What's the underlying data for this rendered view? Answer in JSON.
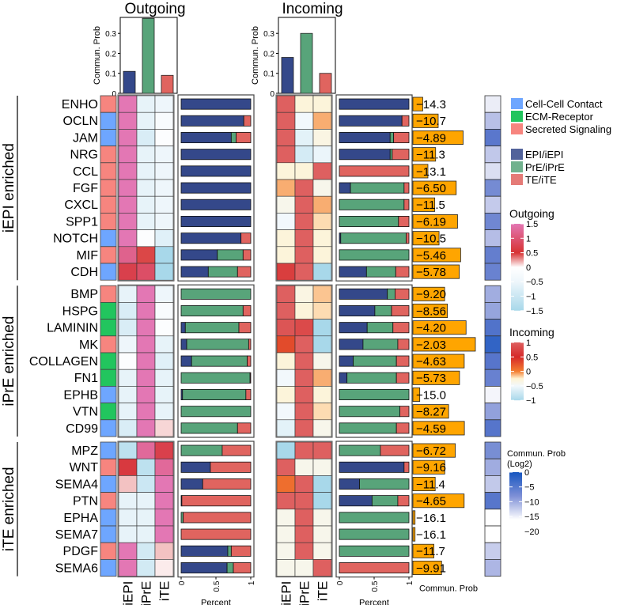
{
  "chart_data": {
    "type": "heatmap",
    "titles": {
      "outgoing": "Outgoing",
      "incoming": "Incoming"
    },
    "top_bar_ylabel": "Commun. Prob",
    "top_bar_yticks": [
      "0",
      "0.1",
      "0.2",
      "0.3"
    ],
    "top_bar_ylim": [
      0,
      0.38
    ],
    "outgoing_totals": [
      0.11,
      0.375,
      0.09
    ],
    "incoming_totals": [
      0.18,
      0.3,
      0.1
    ],
    "cell_groups": [
      "iEPI",
      "iPrE",
      "iTE"
    ],
    "group_colors": {
      "EPI": "#34488a",
      "PrE": "#58a47a",
      "TE": "#e0645f"
    },
    "categories": [
      {
        "name": "Cell-Cell Contact",
        "color": "#6ea6ff"
      },
      {
        "name": "ECM-Receptor",
        "color": "#22c55e"
      },
      {
        "name": "Secreted Signaling",
        "color": "#f7857f"
      }
    ],
    "lineage_legend": [
      "EPI/iEPI",
      "PrE/iPrE",
      "TE/iTE"
    ],
    "sections": [
      {
        "label": "iEPI enriched",
        "rows": [
          0,
          10
        ]
      },
      {
        "label": "iPrE enriched",
        "rows": [
          11,
          19
        ]
      },
      {
        "label": "iTE enriched",
        "rows": [
          20,
          27
        ]
      }
    ],
    "pathways": [
      {
        "name": "ENHO",
        "cat": 2,
        "out": [
          1.5,
          -0.6,
          -0.5
        ],
        "in": [
          1.0,
          -0.3,
          -0.3
        ],
        "out_pct": [
          1,
          0,
          0
        ],
        "in_pct": [
          1,
          0,
          0
        ],
        "prob": "−14.3",
        "log2": -14.3
      },
      {
        "name": "OCLN",
        "cat": 0,
        "out": [
          1.5,
          -0.6,
          -0.2
        ],
        "in": [
          1.0,
          -0.5,
          -0.1
        ],
        "out_pct": [
          0.9,
          0,
          0.1
        ],
        "in_pct": [
          0.9,
          0,
          0.1
        ],
        "prob": "−10.7",
        "log2": -10.7
      },
      {
        "name": "JAM",
        "cat": 0,
        "out": [
          1.5,
          -0.8,
          -0.1
        ],
        "in": [
          1.0,
          -0.6,
          -0.35
        ],
        "out_pct": [
          0.72,
          0.07,
          0.21
        ],
        "in_pct": [
          0.73,
          0.05,
          0.22
        ],
        "prob": "−4.89",
        "log2": -4.89
      },
      {
        "name": "NRG",
        "cat": 2,
        "out": [
          1.5,
          -0.6,
          -0.5
        ],
        "in": [
          1.0,
          -0.7,
          -0.55
        ],
        "out_pct": [
          1,
          0,
          0
        ],
        "in_pct": [
          0.73,
          0.03,
          0.24
        ],
        "prob": "−11.3",
        "log2": -11.3
      },
      {
        "name": "CCL",
        "cat": 2,
        "out": [
          1.5,
          -0.6,
          -0.5
        ],
        "in": [
          -0.3,
          -0.3,
          1.0
        ],
        "out_pct": [
          1,
          0,
          0
        ],
        "in_pct": [
          0,
          0,
          1
        ],
        "prob": "−13.1",
        "log2": -13.1
      },
      {
        "name": "FGF",
        "cat": 2,
        "out": [
          1.5,
          -0.6,
          -0.5
        ],
        "in": [
          -0.1,
          1.0,
          -0.4
        ],
        "out_pct": [
          1,
          0,
          0
        ],
        "in_pct": [
          0.16,
          0.77,
          0.07
        ],
        "prob": "−6.50",
        "log2": -6.5
      },
      {
        "name": "CXCL",
        "cat": 2,
        "out": [
          1.5,
          -0.6,
          -0.5
        ],
        "in": [
          -0.4,
          1.0,
          -0.1
        ],
        "out_pct": [
          1,
          0,
          0
        ],
        "in_pct": [
          0,
          0.93,
          0.07
        ],
        "prob": "−11.5",
        "log2": -11.5
      },
      {
        "name": "SPP1",
        "cat": 2,
        "out": [
          1.5,
          -0.6,
          -0.5
        ],
        "in": [
          -0.5,
          1.0,
          -0.2
        ],
        "out_pct": [
          1,
          0,
          0
        ],
        "in_pct": [
          0,
          0.85,
          0.15
        ],
        "prob": "−6.19",
        "log2": -6.19
      },
      {
        "name": "NOTCH",
        "cat": 0,
        "out": [
          1.5,
          -0.1,
          -0.7
        ],
        "in": [
          -0.3,
          1.0,
          -0.3
        ],
        "out_pct": [
          0.86,
          0,
          0.14
        ],
        "in_pct": [
          0.02,
          0.94,
          0.04
        ],
        "prob": "−10.5",
        "log2": -10.5
      },
      {
        "name": "MIF",
        "cat": 2,
        "out": [
          1.2,
          0.45,
          -1.5
        ],
        "in": [
          -0.3,
          1.0,
          -0.3
        ],
        "out_pct": [
          0.52,
          0.37,
          0.11
        ],
        "in_pct": [
          0,
          1,
          0
        ],
        "prob": "−5.46",
        "log2": -5.46
      },
      {
        "name": "CDH",
        "cat": 0,
        "out": [
          0.7,
          0.9,
          -1.5
        ],
        "in": [
          0.7,
          1.0,
          -1.0
        ],
        "out_pct": [
          0.39,
          0.42,
          0.19
        ],
        "in_pct": [
          0.39,
          0.42,
          0.19
        ],
        "prob": "−5.78",
        "log2": -5.78
      },
      {
        "name": "BMP",
        "cat": 2,
        "out": [
          -0.6,
          1.5,
          -0.5
        ],
        "in": [
          1.0,
          -0.35,
          -0.15
        ],
        "out_pct": [
          0,
          1,
          0
        ],
        "in_pct": [
          0.69,
          0.11,
          0.2
        ],
        "prob": "−9.20",
        "log2": -9.2
      },
      {
        "name": "HSPG",
        "cat": 1,
        "out": [
          -0.8,
          1.5,
          -0.2
        ],
        "in": [
          1.0,
          -0.3,
          -0.2
        ],
        "out_pct": [
          0,
          0.89,
          0.11
        ],
        "in_pct": [
          0.51,
          0.24,
          0.25
        ],
        "prob": "−8.56",
        "log2": -8.56
      },
      {
        "name": "LAMININ",
        "cat": 1,
        "out": [
          -0.8,
          1.5,
          -0.1
        ],
        "in": [
          0.9,
          0.8,
          -1.0
        ],
        "out_pct": [
          0.06,
          0.77,
          0.17
        ],
        "in_pct": [
          0.4,
          0.37,
          0.23
        ],
        "prob": "−4.20",
        "log2": -4.2
      },
      {
        "name": "MK",
        "cat": 2,
        "out": [
          -0.5,
          1.5,
          -0.6
        ],
        "in": [
          0.3,
          1.0,
          -1.0
        ],
        "out_pct": [
          0.08,
          0.89,
          0.03
        ],
        "in_pct": [
          0.34,
          0.5,
          0.16
        ],
        "prob": "−2.03",
        "log2": -2.03
      },
      {
        "name": "COLLAGEN",
        "cat": 1,
        "out": [
          -0.1,
          1.5,
          -0.7
        ],
        "in": [
          -0.3,
          1.0,
          -0.4
        ],
        "out_pct": [
          0.15,
          0.8,
          0.05
        ],
        "in_pct": [
          0.2,
          0.62,
          0.18
        ],
        "prob": "−4.63",
        "log2": -4.63
      },
      {
        "name": "FN1",
        "cat": 1,
        "out": [
          -0.6,
          1.5,
          -0.6
        ],
        "in": [
          -0.5,
          1.0,
          -0.1
        ],
        "out_pct": [
          0,
          0.99,
          0.01
        ],
        "in_pct": [
          0.11,
          0.71,
          0.18
        ],
        "prob": "−5.73",
        "log2": -5.73
      },
      {
        "name": "EPHB",
        "cat": 0,
        "out": [
          -0.6,
          1.5,
          -0.6
        ],
        "in": [
          -0.3,
          1.0,
          -0.3
        ],
        "out_pct": [
          0.02,
          0.91,
          0.07
        ],
        "in_pct": [
          0,
          1,
          0
        ],
        "prob": "−15.0",
        "log2": -15.0
      },
      {
        "name": "VTN",
        "cat": 1,
        "out": [
          -0.6,
          1.5,
          -0.6
        ],
        "in": [
          -0.5,
          1.0,
          -0.2
        ],
        "out_pct": [
          0,
          1,
          0
        ],
        "in_pct": [
          0,
          0.87,
          0.13
        ],
        "prob": "−8.27",
        "log2": -8.27
      },
      {
        "name": "CD99",
        "cat": 0,
        "out": [
          -0.8,
          1.5,
          0.1
        ],
        "in": [
          -0.6,
          1.0,
          -0.4
        ],
        "out_pct": [
          0,
          0.81,
          0.19
        ],
        "in_pct": [
          0,
          0.82,
          0.18
        ],
        "prob": "−4.59",
        "log2": -4.59
      },
      {
        "name": "MPZ",
        "cat": 0,
        "out": [
          -1.2,
          1.3,
          0.7
        ],
        "in": [
          -1.0,
          1.0,
          1.2
        ],
        "out_pct": [
          0,
          0.59,
          0.41
        ],
        "in_pct": [
          0,
          0.59,
          0.41
        ],
        "prob": "−6.72",
        "log2": -6.72
      },
      {
        "name": "WNT",
        "cat": 2,
        "out": [
          0.6,
          -1.2,
          1.3
        ],
        "in": [
          1.0,
          -0.4,
          -0.4
        ],
        "out_pct": [
          0.42,
          0,
          0.58
        ],
        "in_pct": [
          0.93,
          0,
          0.07
        ],
        "prob": "−9.16",
        "log2": -9.16
      },
      {
        "name": "SEMA4",
        "cat": 0,
        "out": [
          0.15,
          -1.0,
          1.5
        ],
        "in": [
          0.1,
          1.0,
          -1.0
        ],
        "out_pct": [
          0.31,
          0,
          0.69
        ],
        "in_pct": [
          0.29,
          0.71,
          0
        ],
        "prob": "−11.4",
        "log2": -11.4
      },
      {
        "name": "PTN",
        "cat": 2,
        "out": [
          -0.6,
          -0.6,
          1.5
        ],
        "in": [
          1.0,
          1.2,
          -1.0
        ],
        "out_pct": [
          0.01,
          0,
          0.99
        ],
        "in_pct": [
          0.47,
          0.37,
          0.16
        ],
        "prob": "−4.65",
        "log2": -4.65
      },
      {
        "name": "EPHA",
        "cat": 0,
        "out": [
          -0.6,
          -0.6,
          1.5
        ],
        "in": [
          -0.4,
          1.0,
          -0.4
        ],
        "out_pct": [
          0,
          0.03,
          0.97
        ],
        "in_pct": [
          0,
          1,
          0
        ],
        "prob": "−16.1",
        "log2": -16.1
      },
      {
        "name": "SEMA7",
        "cat": 0,
        "out": [
          -0.6,
          -0.6,
          1.5
        ],
        "in": [
          -0.4,
          1.0,
          -0.4
        ],
        "out_pct": [
          0,
          0,
          1
        ],
        "in_pct": [
          0,
          1,
          0
        ],
        "prob": "−16.1",
        "log2": -16.1
      },
      {
        "name": "PDGF",
        "cat": 2,
        "out": [
          1.5,
          -0.9,
          0.15
        ],
        "in": [
          -0.4,
          1.0,
          -0.4
        ],
        "out_pct": [
          0.67,
          0.05,
          0.28
        ],
        "in_pct": [
          0,
          1,
          0
        ],
        "prob": "−11.7",
        "log2": -11.7
      },
      {
        "name": "SEMA6",
        "cat": 0,
        "out": [
          1.5,
          -0.9,
          0.05
        ],
        "in": [
          -0.4,
          -0.4,
          1.0
        ],
        "out_pct": [
          0.66,
          0.09,
          0.25
        ],
        "in_pct": [
          0,
          0,
          1
        ],
        "prob": "−9.91",
        "log2": -9.91
      }
    ],
    "percent_axis": {
      "label": "Percent",
      "ticks": [
        "0",
        "0.5",
        "1"
      ]
    },
    "prob_axis_label": "Commun. Prob",
    "legend_outgoing": {
      "title": "Outgoing",
      "ticks": [
        "1.5",
        "1",
        "0.5",
        "0",
        "−0.5",
        "−1",
        "−1.5"
      ]
    },
    "legend_incoming": {
      "title": "Incoming",
      "ticks": [
        "1",
        "0.5",
        "0",
        "−0.5",
        "−1"
      ]
    },
    "legend_log2": {
      "title": "Commun. Prob",
      "subtitle": "(Log2)",
      "ticks": [
        "0",
        "−5",
        "−10",
        "−15",
        "−20"
      ]
    }
  }
}
